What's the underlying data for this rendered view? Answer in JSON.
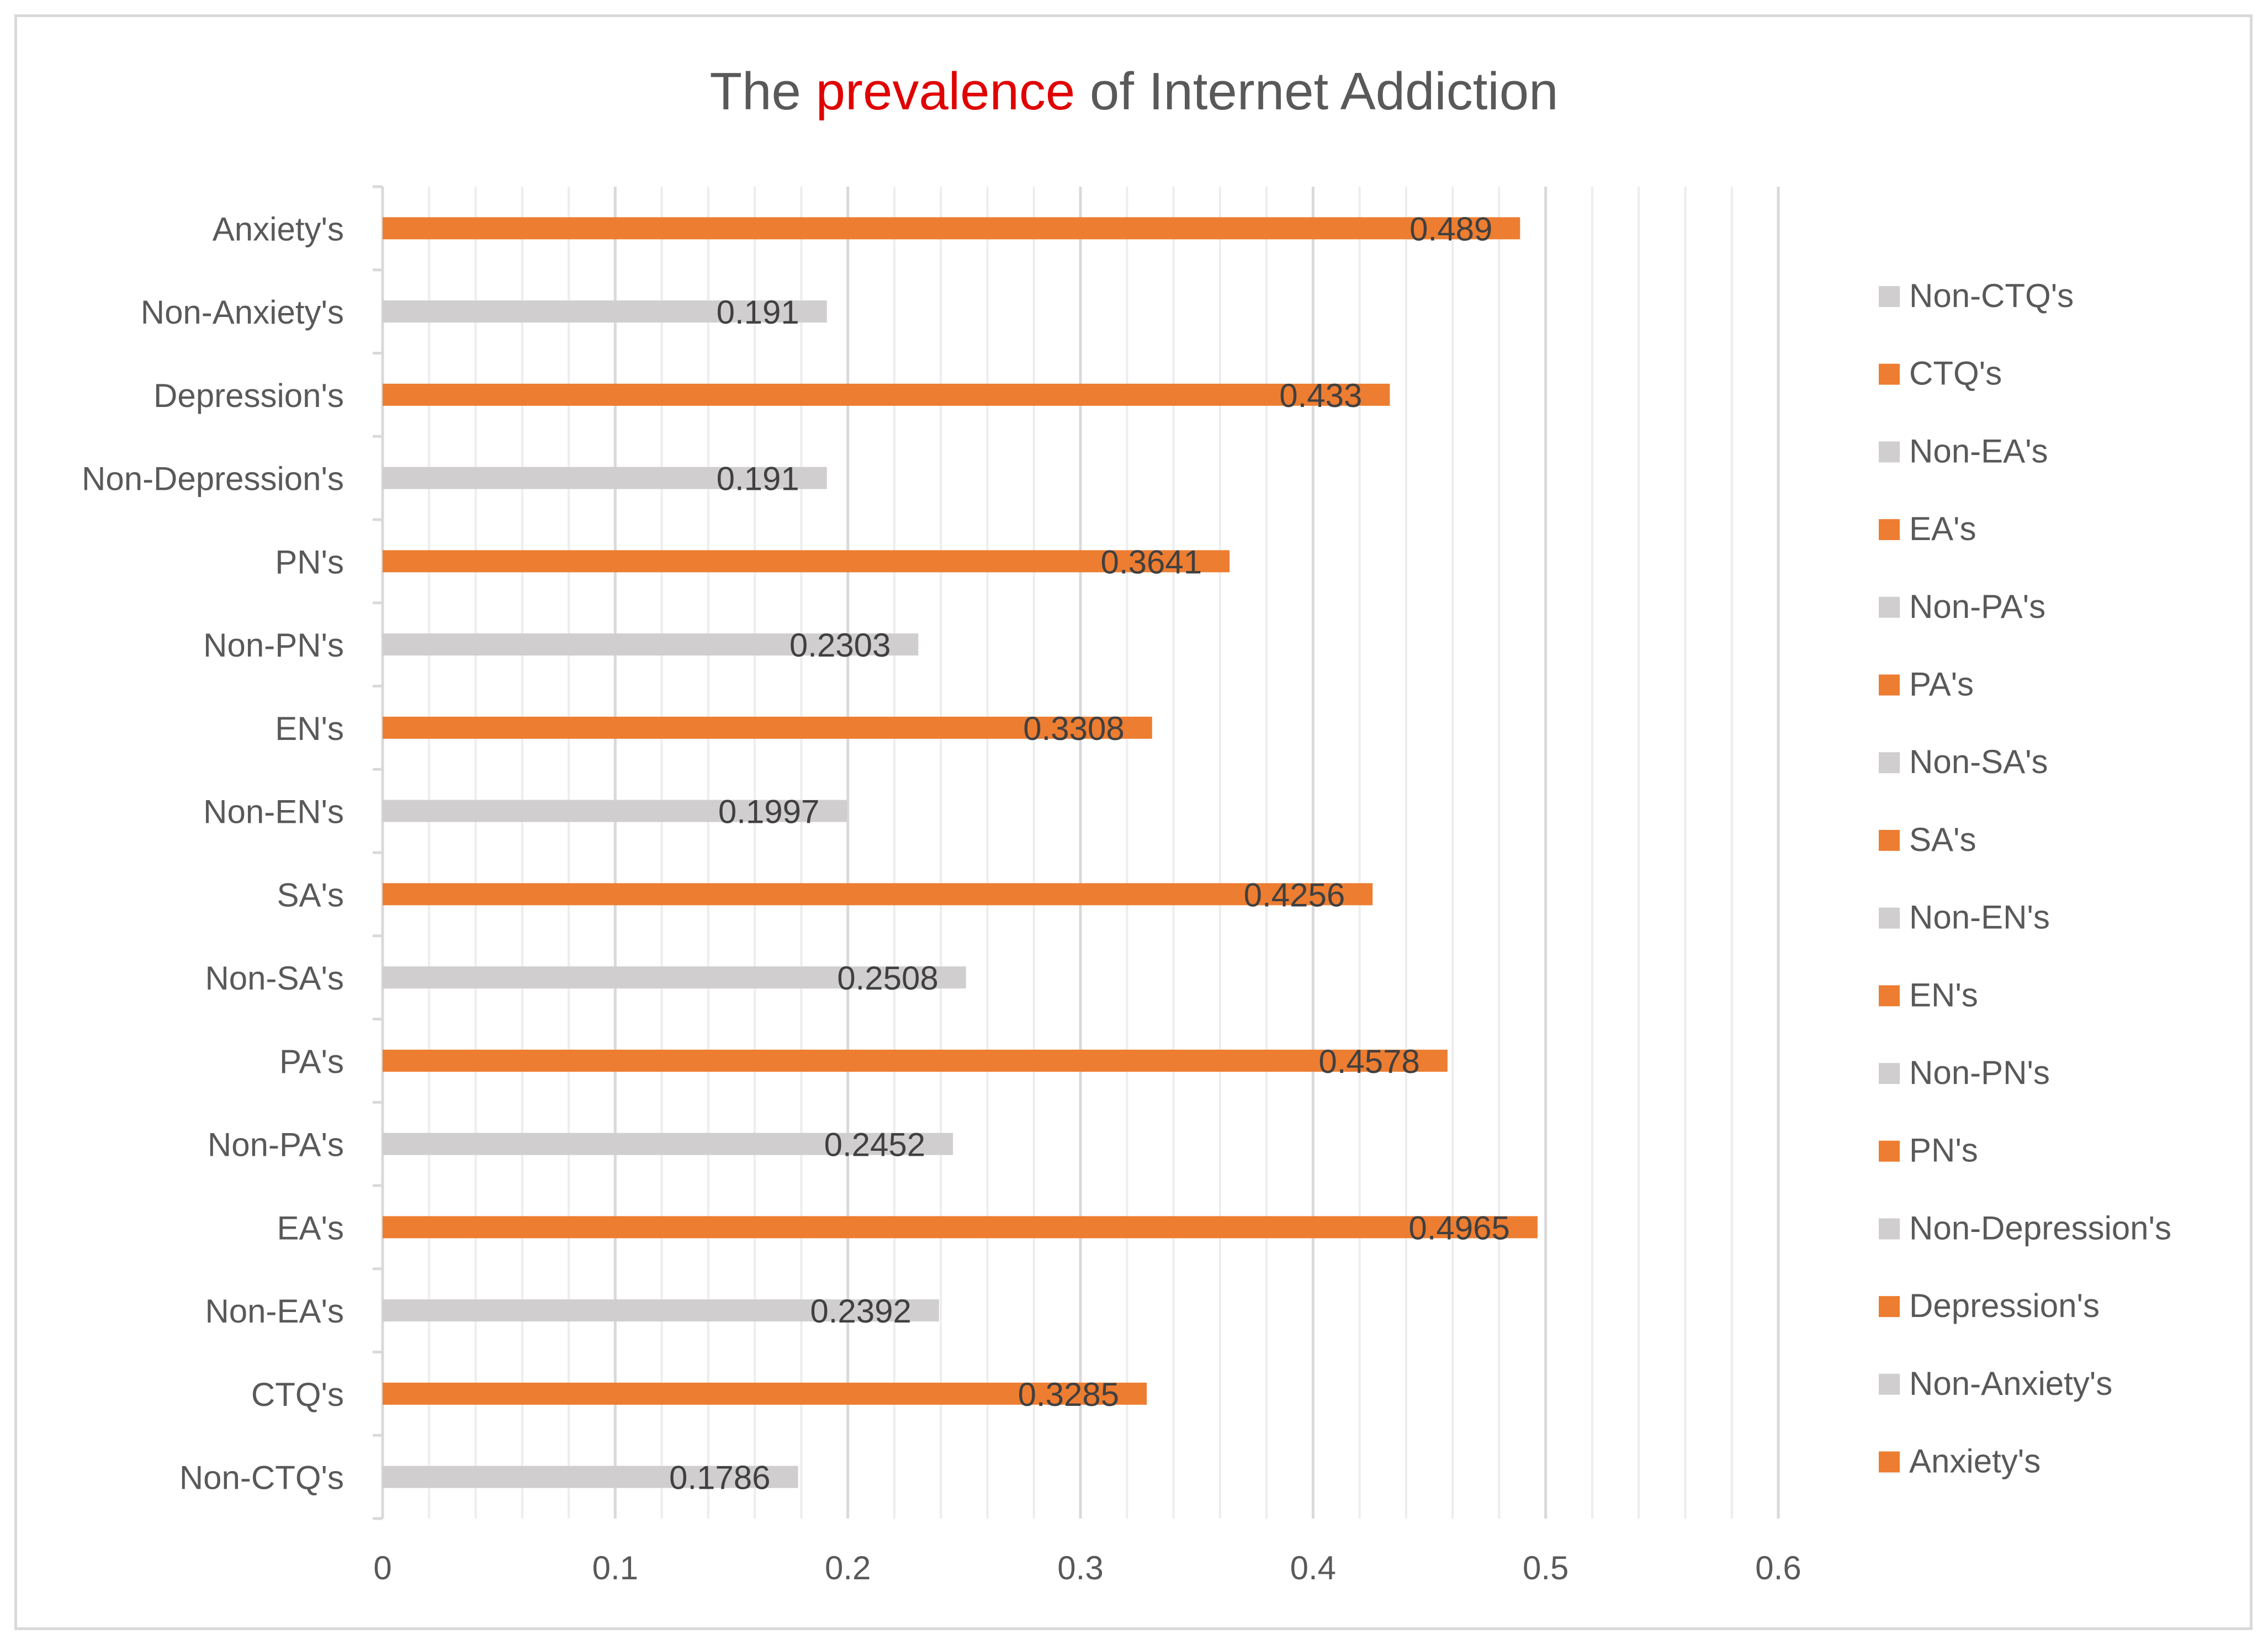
{
  "chart_data": {
    "type": "bar",
    "orientation": "horizontal",
    "title": {
      "prefix": "The ",
      "highlight": "prevalence",
      "suffix": " of Internet Addiction",
      "highlight_color": "#e00000",
      "color": "#595959"
    },
    "xlim": [
      0,
      0.6
    ],
    "xticks": [
      0,
      0.1,
      0.2,
      0.3,
      0.4,
      0.5,
      0.6
    ],
    "xtick_labels": [
      "0",
      "0.1",
      "0.2",
      "0.3",
      "0.4",
      "0.5",
      "0.6"
    ],
    "grid": true,
    "legend_position": "right",
    "colors": {
      "orange": "#ed7d31",
      "gray": "#d0cece"
    },
    "series": [
      {
        "name": "Anxiety's",
        "value": 0.489,
        "label": "0.489",
        "color": "orange"
      },
      {
        "name": "Non-Anxiety's",
        "value": 0.191,
        "label": "0.191",
        "color": "gray"
      },
      {
        "name": "Depression's",
        "value": 0.433,
        "label": "0.433",
        "color": "orange"
      },
      {
        "name": "Non-Depression's",
        "value": 0.191,
        "label": "0.191",
        "color": "gray"
      },
      {
        "name": "PN's",
        "value": 0.3641,
        "label": "0.3641",
        "color": "orange"
      },
      {
        "name": "Non-PN's",
        "value": 0.2303,
        "label": "0.2303",
        "color": "gray"
      },
      {
        "name": "EN's",
        "value": 0.3308,
        "label": "0.3308",
        "color": "orange"
      },
      {
        "name": "Non-EN's",
        "value": 0.1997,
        "label": "0.1997",
        "color": "gray"
      },
      {
        "name": "SA's",
        "value": 0.4256,
        "label": "0.4256",
        "color": "orange"
      },
      {
        "name": "Non-SA's",
        "value": 0.2508,
        "label": "0.2508",
        "color": "gray"
      },
      {
        "name": "PA's",
        "value": 0.4578,
        "label": "0.4578",
        "color": "orange"
      },
      {
        "name": "Non-PA's",
        "value": 0.2452,
        "label": "0.2452",
        "color": "gray"
      },
      {
        "name": "EA's",
        "value": 0.4965,
        "label": "0.4965",
        "color": "orange"
      },
      {
        "name": "Non-EA's",
        "value": 0.2392,
        "label": "0.2392",
        "color": "gray"
      },
      {
        "name": "CTQ's",
        "value": 0.3285,
        "label": "0.3285",
        "color": "orange"
      },
      {
        "name": "Non-CTQ's",
        "value": 0.1786,
        "label": "0.1786",
        "color": "gray"
      }
    ],
    "legend": [
      {
        "name": "Non-CTQ's",
        "color": "gray"
      },
      {
        "name": "CTQ's",
        "color": "orange"
      },
      {
        "name": "Non-EA's",
        "color": "gray"
      },
      {
        "name": "EA's",
        "color": "orange"
      },
      {
        "name": "Non-PA's",
        "color": "gray"
      },
      {
        "name": "PA's",
        "color": "orange"
      },
      {
        "name": "Non-SA's",
        "color": "gray"
      },
      {
        "name": "SA's",
        "color": "orange"
      },
      {
        "name": "Non-EN's",
        "color": "gray"
      },
      {
        "name": "EN's",
        "color": "orange"
      },
      {
        "name": "Non-PN's",
        "color": "gray"
      },
      {
        "name": "PN's",
        "color": "orange"
      },
      {
        "name": "Non-Depression's",
        "color": "gray"
      },
      {
        "name": "Depression's",
        "color": "orange"
      },
      {
        "name": "Non-Anxiety's",
        "color": "gray"
      },
      {
        "name": "Anxiety's",
        "color": "orange"
      }
    ]
  }
}
